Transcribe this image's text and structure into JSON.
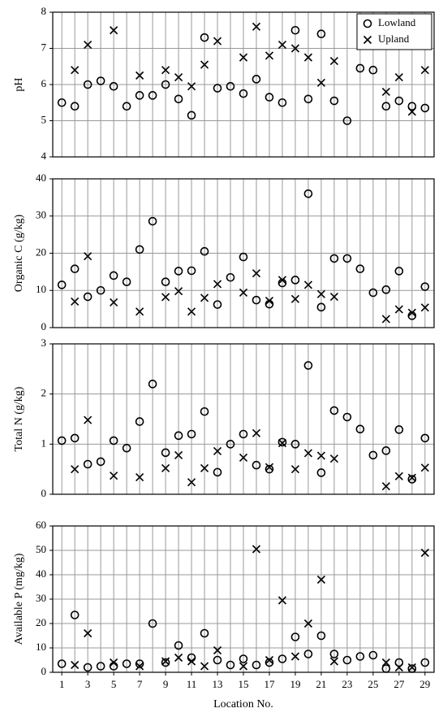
{
  "chart_data": [
    {
      "type": "scatter",
      "ylabel": "pH",
      "xlim": [
        0.3,
        29.7
      ],
      "ylim": [
        4,
        8
      ],
      "yticks": [
        4,
        5,
        6,
        7,
        8
      ],
      "grid": true,
      "legend": "upper right",
      "x": [
        1,
        2,
        3,
        4,
        5,
        6,
        7,
        8,
        9,
        10,
        11,
        12,
        13,
        14,
        15,
        16,
        17,
        18,
        19,
        20,
        21,
        22,
        23,
        24,
        25,
        26,
        27,
        28,
        29
      ],
      "series": [
        {
          "name": "Lowland",
          "marker": "o",
          "color": "#000000",
          "values": [
            5.5,
            5.4,
            6.0,
            6.1,
            5.95,
            5.4,
            5.7,
            5.7,
            6.0,
            5.6,
            5.15,
            7.3,
            5.9,
            5.95,
            5.75,
            6.15,
            5.65,
            5.5,
            7.5,
            5.6,
            7.4,
            5.55,
            5.0,
            6.45,
            6.4,
            5.4,
            5.55,
            5.4,
            5.35
          ]
        },
        {
          "name": "Upland",
          "marker": "x",
          "color": "#000000",
          "values": [
            null,
            6.4,
            7.1,
            null,
            7.5,
            null,
            6.25,
            null,
            6.4,
            6.2,
            5.95,
            6.55,
            7.2,
            null,
            6.75,
            7.6,
            6.8,
            7.1,
            7.0,
            6.75,
            6.05,
            6.65,
            null,
            null,
            null,
            5.8,
            6.2,
            5.25,
            6.4
          ]
        }
      ]
    },
    {
      "type": "scatter",
      "ylabel": "Organic C (g/kg)",
      "xlim": [
        0.3,
        29.7
      ],
      "ylim": [
        0,
        40
      ],
      "yticks": [
        0,
        10,
        20,
        30,
        40
      ],
      "grid": true,
      "x": [
        1,
        2,
        3,
        4,
        5,
        6,
        7,
        8,
        9,
        10,
        11,
        12,
        13,
        14,
        15,
        16,
        17,
        18,
        19,
        20,
        21,
        22,
        23,
        24,
        25,
        26,
        27,
        28,
        29
      ],
      "series": [
        {
          "marker": "o",
          "color": "#000000",
          "values": [
            11.5,
            15.8,
            8.3,
            10,
            14,
            12.3,
            21,
            28.6,
            12.3,
            15.2,
            15.3,
            20.5,
            6.2,
            13.5,
            19,
            7.4,
            6.3,
            12,
            12.8,
            36,
            5.5,
            18.6,
            18.6,
            15.8,
            9.4,
            10.2,
            15.2,
            3.2,
            11
          ]
        },
        {
          "marker": "x",
          "color": "#000000",
          "values": [
            null,
            7,
            19.2,
            null,
            6.8,
            null,
            4.3,
            null,
            8.2,
            9.8,
            4.3,
            8,
            11.7,
            null,
            9.4,
            14.6,
            7.2,
            12.8,
            7.7,
            11.5,
            9,
            8.3,
            null,
            null,
            null,
            2.3,
            4.9,
            4,
            5.4
          ]
        }
      ]
    },
    {
      "type": "scatter",
      "ylabel": "Total N (g/kg)",
      "xlim": [
        0.3,
        29.7
      ],
      "ylim": [
        0,
        3
      ],
      "yticks": [
        0,
        1,
        2,
        3
      ],
      "grid": true,
      "x": [
        1,
        2,
        3,
        4,
        5,
        6,
        7,
        8,
        9,
        10,
        11,
        12,
        13,
        14,
        15,
        16,
        17,
        18,
        19,
        20,
        21,
        22,
        23,
        24,
        25,
        26,
        27,
        28,
        29
      ],
      "series": [
        {
          "marker": "o",
          "color": "#000000",
          "values": [
            1.07,
            1.12,
            0.6,
            0.65,
            1.07,
            0.92,
            1.45,
            2.2,
            0.83,
            1.17,
            1.2,
            1.65,
            0.44,
            1.0,
            1.2,
            0.58,
            0.5,
            1.04,
            1.0,
            2.57,
            0.43,
            1.67,
            1.54,
            1.3,
            0.78,
            0.87,
            1.29,
            0.3,
            1.12
          ]
        },
        {
          "marker": "x",
          "color": "#000000",
          "values": [
            null,
            0.5,
            1.48,
            null,
            0.37,
            null,
            0.34,
            null,
            0.52,
            0.78,
            0.24,
            0.52,
            0.86,
            null,
            0.73,
            1.22,
            0.54,
            1.02,
            0.5,
            0.82,
            0.77,
            0.71,
            null,
            null,
            null,
            0.16,
            0.36,
            0.33,
            0.53
          ]
        }
      ]
    },
    {
      "type": "scatter",
      "ylabel": "Available P (mg/kg)",
      "xlabel": "Location No.",
      "xlim": [
        0.3,
        29.7
      ],
      "ylim": [
        0,
        60
      ],
      "yticks": [
        0,
        10,
        20,
        30,
        40,
        50,
        60
      ],
      "grid": true,
      "xticks": [
        1,
        3,
        5,
        7,
        9,
        11,
        13,
        15,
        17,
        19,
        21,
        23,
        25,
        27,
        29
      ],
      "x": [
        1,
        2,
        3,
        4,
        5,
        6,
        7,
        8,
        9,
        10,
        11,
        12,
        13,
        14,
        15,
        16,
        17,
        18,
        19,
        20,
        21,
        22,
        23,
        24,
        25,
        26,
        27,
        28,
        29
      ],
      "series": [
        {
          "marker": "o",
          "color": "#000000",
          "values": [
            3.5,
            23.5,
            2,
            2.5,
            2.5,
            3.5,
            3.5,
            20,
            4,
            11,
            6,
            16,
            5,
            3,
            5.5,
            3,
            4,
            5.5,
            14.5,
            7.5,
            15,
            7.5,
            5,
            6.5,
            7,
            1.5,
            4,
            1.5,
            4
          ]
        },
        {
          "marker": "x",
          "color": "#000000",
          "values": [
            null,
            3,
            16,
            null,
            4,
            null,
            2.5,
            null,
            4.5,
            6,
            4.5,
            2.5,
            9,
            null,
            2.5,
            50.5,
            5,
            29.5,
            6.5,
            20,
            38,
            4.5,
            null,
            null,
            null,
            4,
            2,
            2,
            49
          ]
        }
      ]
    }
  ]
}
